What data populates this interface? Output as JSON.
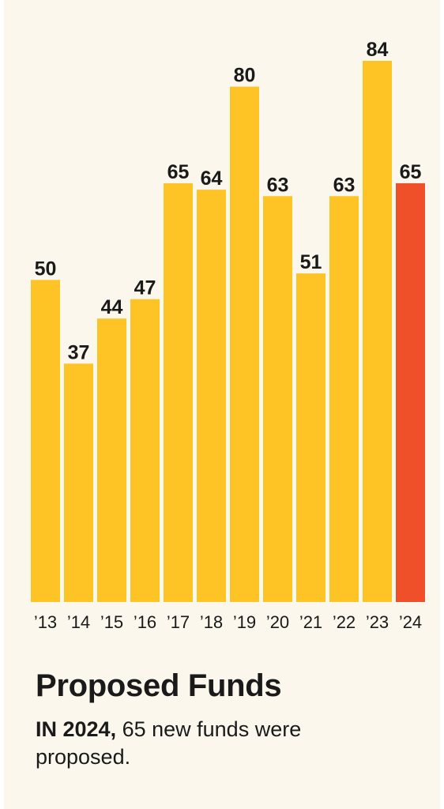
{
  "title": "Proposed Funds",
  "caption": {
    "lead": "IN 2024,",
    "text": " 65 new funds were proposed."
  },
  "colors": {
    "background": "#fbf7ec",
    "bar": "#fec426",
    "highlight": "#ef4f29",
    "text": "#1a1a1a"
  },
  "chart_data": {
    "type": "bar",
    "categories": [
      "’13",
      "’14",
      "’15",
      "’16",
      "’17",
      "’18",
      "’19",
      "’20",
      "’21",
      "’22",
      "’23",
      "’24"
    ],
    "values": [
      50,
      37,
      44,
      47,
      65,
      64,
      80,
      63,
      51,
      63,
      84,
      65
    ],
    "highlight_category": "’24",
    "ylim": [
      0,
      84
    ],
    "grid": false,
    "data_labels": true,
    "title": "",
    "xlabel": "",
    "ylabel": ""
  }
}
